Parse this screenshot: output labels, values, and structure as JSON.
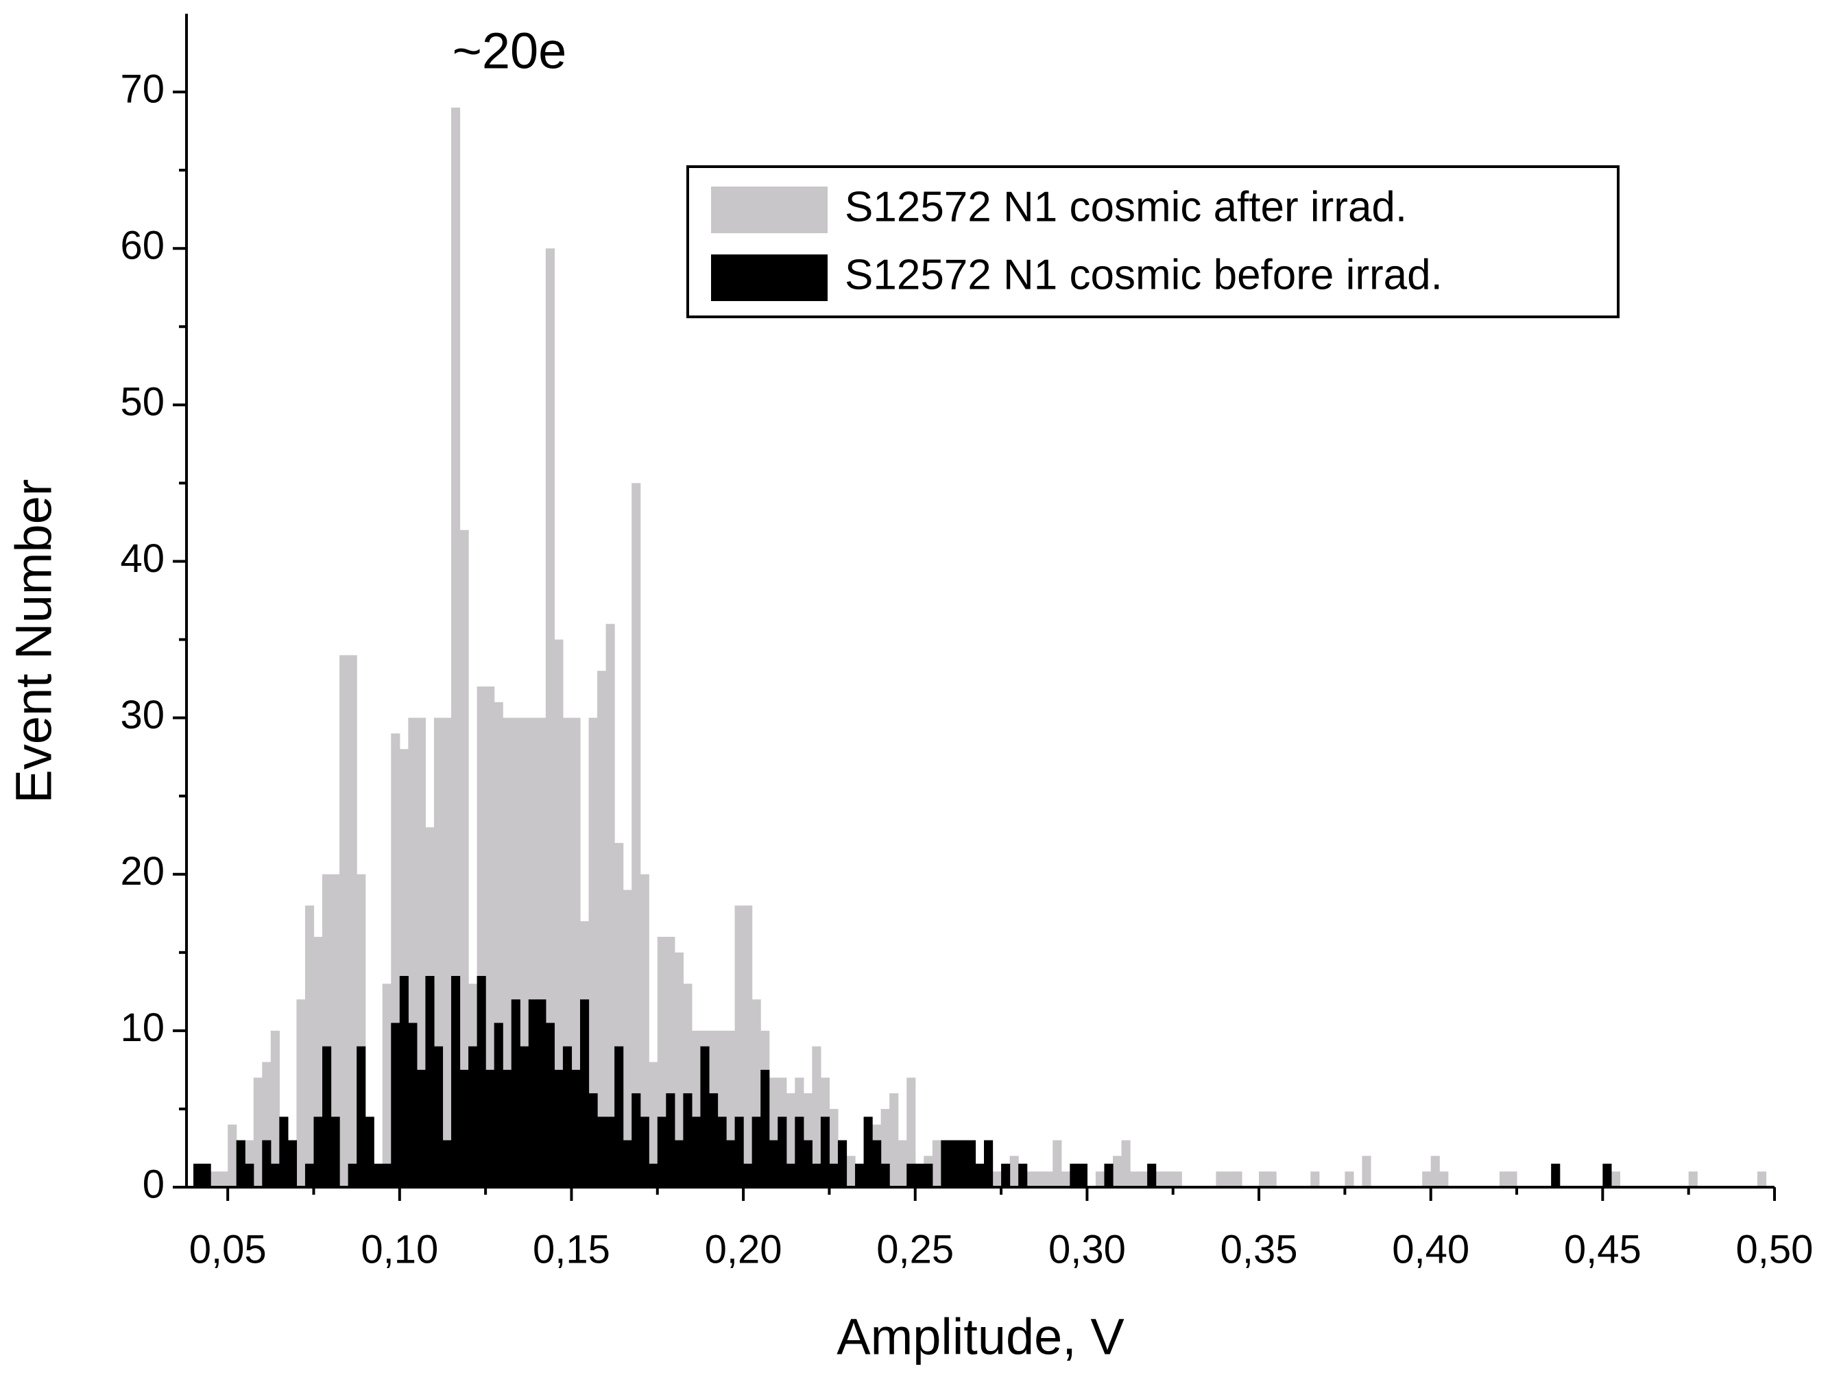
{
  "chart_data": {
    "type": "histogram",
    "annotation": "~20e",
    "x_label": "Amplitude, V",
    "y_label": "Event Number",
    "bins": [
      0.04,
      0.0425,
      0.045,
      0.0475,
      0.05,
      0.0525,
      0.055,
      0.0575,
      0.06,
      0.0625,
      0.065,
      0.0675,
      0.07,
      0.0725,
      0.075,
      0.0775,
      0.08,
      0.0825,
      0.085,
      0.0875,
      0.09,
      0.0925,
      0.095,
      0.0975,
      0.1,
      0.1025,
      0.105,
      0.1075,
      0.11,
      0.1125,
      0.115,
      0.1175,
      0.12,
      0.1225,
      0.125,
      0.1275,
      0.13,
      0.1325,
      0.135,
      0.1375,
      0.14,
      0.1425,
      0.145,
      0.1475,
      0.15,
      0.1525,
      0.155,
      0.1575,
      0.16,
      0.1625,
      0.165,
      0.1675,
      0.17,
      0.1725,
      0.175,
      0.1775,
      0.18,
      0.1825,
      0.185,
      0.1875,
      0.19,
      0.1925,
      0.195,
      0.1975,
      0.2,
      0.2025,
      0.205,
      0.2075,
      0.21,
      0.2125,
      0.215,
      0.2175,
      0.22,
      0.2225,
      0.225,
      0.2275,
      0.23,
      0.2325,
      0.235,
      0.2375,
      0.24,
      0.2425,
      0.245,
      0.2475,
      0.25,
      0.2525,
      0.255,
      0.2575,
      0.26,
      0.2625,
      0.265,
      0.2675,
      0.27,
      0.2725,
      0.275,
      0.2775,
      0.28,
      0.2825,
      0.285,
      0.2875,
      0.29,
      0.2925,
      0.295,
      0.2975,
      0.3,
      0.3025,
      0.305,
      0.3075,
      0.31,
      0.3125,
      0.315,
      0.3175,
      0.32,
      0.3225,
      0.325,
      0.3275,
      0.33,
      0.3325,
      0.335,
      0.3375,
      0.34,
      0.3425,
      0.345,
      0.3475,
      0.35,
      0.3525,
      0.355,
      0.3575,
      0.36,
      0.3625,
      0.365,
      0.3675,
      0.37,
      0.3725,
      0.375,
      0.3775,
      0.38,
      0.3825,
      0.385,
      0.3875,
      0.39,
      0.3925,
      0.395,
      0.3975,
      0.4,
      0.4025,
      0.405,
      0.4075,
      0.41,
      0.4125,
      0.415,
      0.4175,
      0.42,
      0.4225,
      0.425,
      0.4275,
      0.43,
      0.4325,
      0.435,
      0.4375,
      0.44,
      0.4425,
      0.445,
      0.4475,
      0.45,
      0.4525,
      0.455,
      0.4575,
      0.46,
      0.4625,
      0.465,
      0.4675,
      0.47,
      0.4725,
      0.475,
      0.4775,
      0.48,
      0.4825,
      0.485,
      0.4875,
      0.49,
      0.4925,
      0.495,
      0.4975,
      0.5
    ],
    "series": [
      {
        "name": "S12572 N1 cosmic after irrad.",
        "color": "#c8c6c8",
        "values": [
          1,
          1,
          1,
          1,
          4,
          3,
          3,
          7,
          8,
          10,
          3,
          0,
          12,
          18,
          16,
          20,
          20,
          34,
          34,
          20,
          1,
          1,
          13,
          29,
          28,
          30,
          30,
          23,
          30,
          30,
          69,
          42,
          13,
          32,
          32,
          31,
          30,
          30,
          30,
          30,
          30,
          60,
          35,
          30,
          30,
          17,
          30,
          33,
          36,
          22,
          19,
          45,
          20,
          8,
          16,
          16,
          15,
          13,
          10,
          10,
          10,
          10,
          10,
          18,
          18,
          12,
          10,
          7,
          7,
          6,
          7,
          6,
          9,
          7,
          5,
          3,
          2,
          1,
          2,
          4,
          5,
          6,
          3,
          7,
          1,
          2,
          3,
          2,
          3,
          2,
          2,
          1,
          2,
          1,
          1,
          2,
          1,
          1,
          1,
          1,
          3,
          1,
          1,
          1,
          0,
          1,
          1,
          2,
          3,
          1,
          1,
          0,
          1,
          1,
          1,
          0,
          0,
          0,
          0,
          1,
          1,
          1,
          0,
          0,
          1,
          1,
          0,
          0,
          0,
          0,
          1,
          0,
          0,
          0,
          1,
          0,
          2,
          0,
          0,
          0,
          0,
          0,
          0,
          1,
          2,
          1,
          0,
          0,
          0,
          0,
          0,
          0,
          1,
          1,
          0,
          0,
          0,
          0,
          1,
          0,
          0,
          0,
          0,
          0,
          0,
          1,
          0,
          0,
          0,
          0,
          0,
          0,
          0,
          0,
          1,
          0,
          0,
          0,
          0,
          0,
          0,
          0,
          1,
          0
        ]
      },
      {
        "name": "S12572 N1 cosmic before irrad.",
        "color": "#000000",
        "values": [
          1.5,
          1.5,
          0,
          0,
          0,
          3,
          1.5,
          0,
          3,
          1.5,
          4.5,
          3,
          0,
          1.5,
          4.5,
          9,
          4.5,
          0,
          1.5,
          9,
          4.5,
          1.5,
          1.5,
          10.5,
          13.5,
          10.5,
          7.5,
          13.5,
          9,
          3,
          13.5,
          7.5,
          9,
          13.5,
          7.5,
          10.5,
          7.5,
          12,
          9,
          12,
          12,
          10.5,
          7.5,
          9,
          7.5,
          12,
          6,
          4.5,
          4.5,
          9,
          3,
          6,
          4.5,
          1.5,
          4.5,
          6,
          3,
          6,
          4.5,
          9,
          6,
          4.5,
          3,
          4.5,
          1.5,
          4.5,
          7.5,
          3,
          4.5,
          1.5,
          4.5,
          3,
          1.5,
          4.5,
          1.5,
          3,
          0,
          1.5,
          4.5,
          3,
          1.5,
          0,
          0,
          1.5,
          1.5,
          1.5,
          0,
          3,
          3,
          3,
          3,
          1.5,
          3,
          0,
          1.5,
          0,
          1.5,
          0,
          0,
          0,
          0,
          0,
          1.5,
          1.5,
          0,
          0,
          1.5,
          0,
          0,
          0,
          0,
          1.5,
          0,
          0,
          0,
          0,
          0,
          0,
          0,
          0,
          0,
          0,
          0,
          0,
          0,
          0,
          0,
          0,
          0,
          0,
          0,
          0,
          0,
          0,
          0,
          0,
          0,
          0,
          0,
          0,
          0,
          0,
          0,
          0,
          0,
          0,
          0,
          0,
          0,
          0,
          0,
          0,
          0,
          0,
          0,
          0,
          0,
          0,
          1.5,
          0,
          0,
          0,
          0,
          0,
          1.5,
          0,
          0,
          0,
          0,
          0,
          0,
          0,
          0,
          0,
          0,
          0,
          0,
          0,
          0,
          0,
          0,
          0,
          0,
          0
        ]
      }
    ],
    "xlim": [
      0.038,
      0.5
    ],
    "ylim": [
      0,
      75
    ],
    "xticks": [
      {
        "value": 0.05,
        "label": "0,05"
      },
      {
        "value": 0.1,
        "label": "0,10"
      },
      {
        "value": 0.15,
        "label": "0,15"
      },
      {
        "value": 0.2,
        "label": "0,20"
      },
      {
        "value": 0.25,
        "label": "0,25"
      },
      {
        "value": 0.3,
        "label": "0,30"
      },
      {
        "value": 0.35,
        "label": "0,35"
      },
      {
        "value": 0.4,
        "label": "0,40"
      },
      {
        "value": 0.45,
        "label": "0,45"
      },
      {
        "value": 0.5,
        "label": "0,50"
      }
    ],
    "yticks": [
      0,
      10,
      20,
      30,
      40,
      50,
      60,
      70
    ],
    "grid": false,
    "legend": "upper right"
  }
}
